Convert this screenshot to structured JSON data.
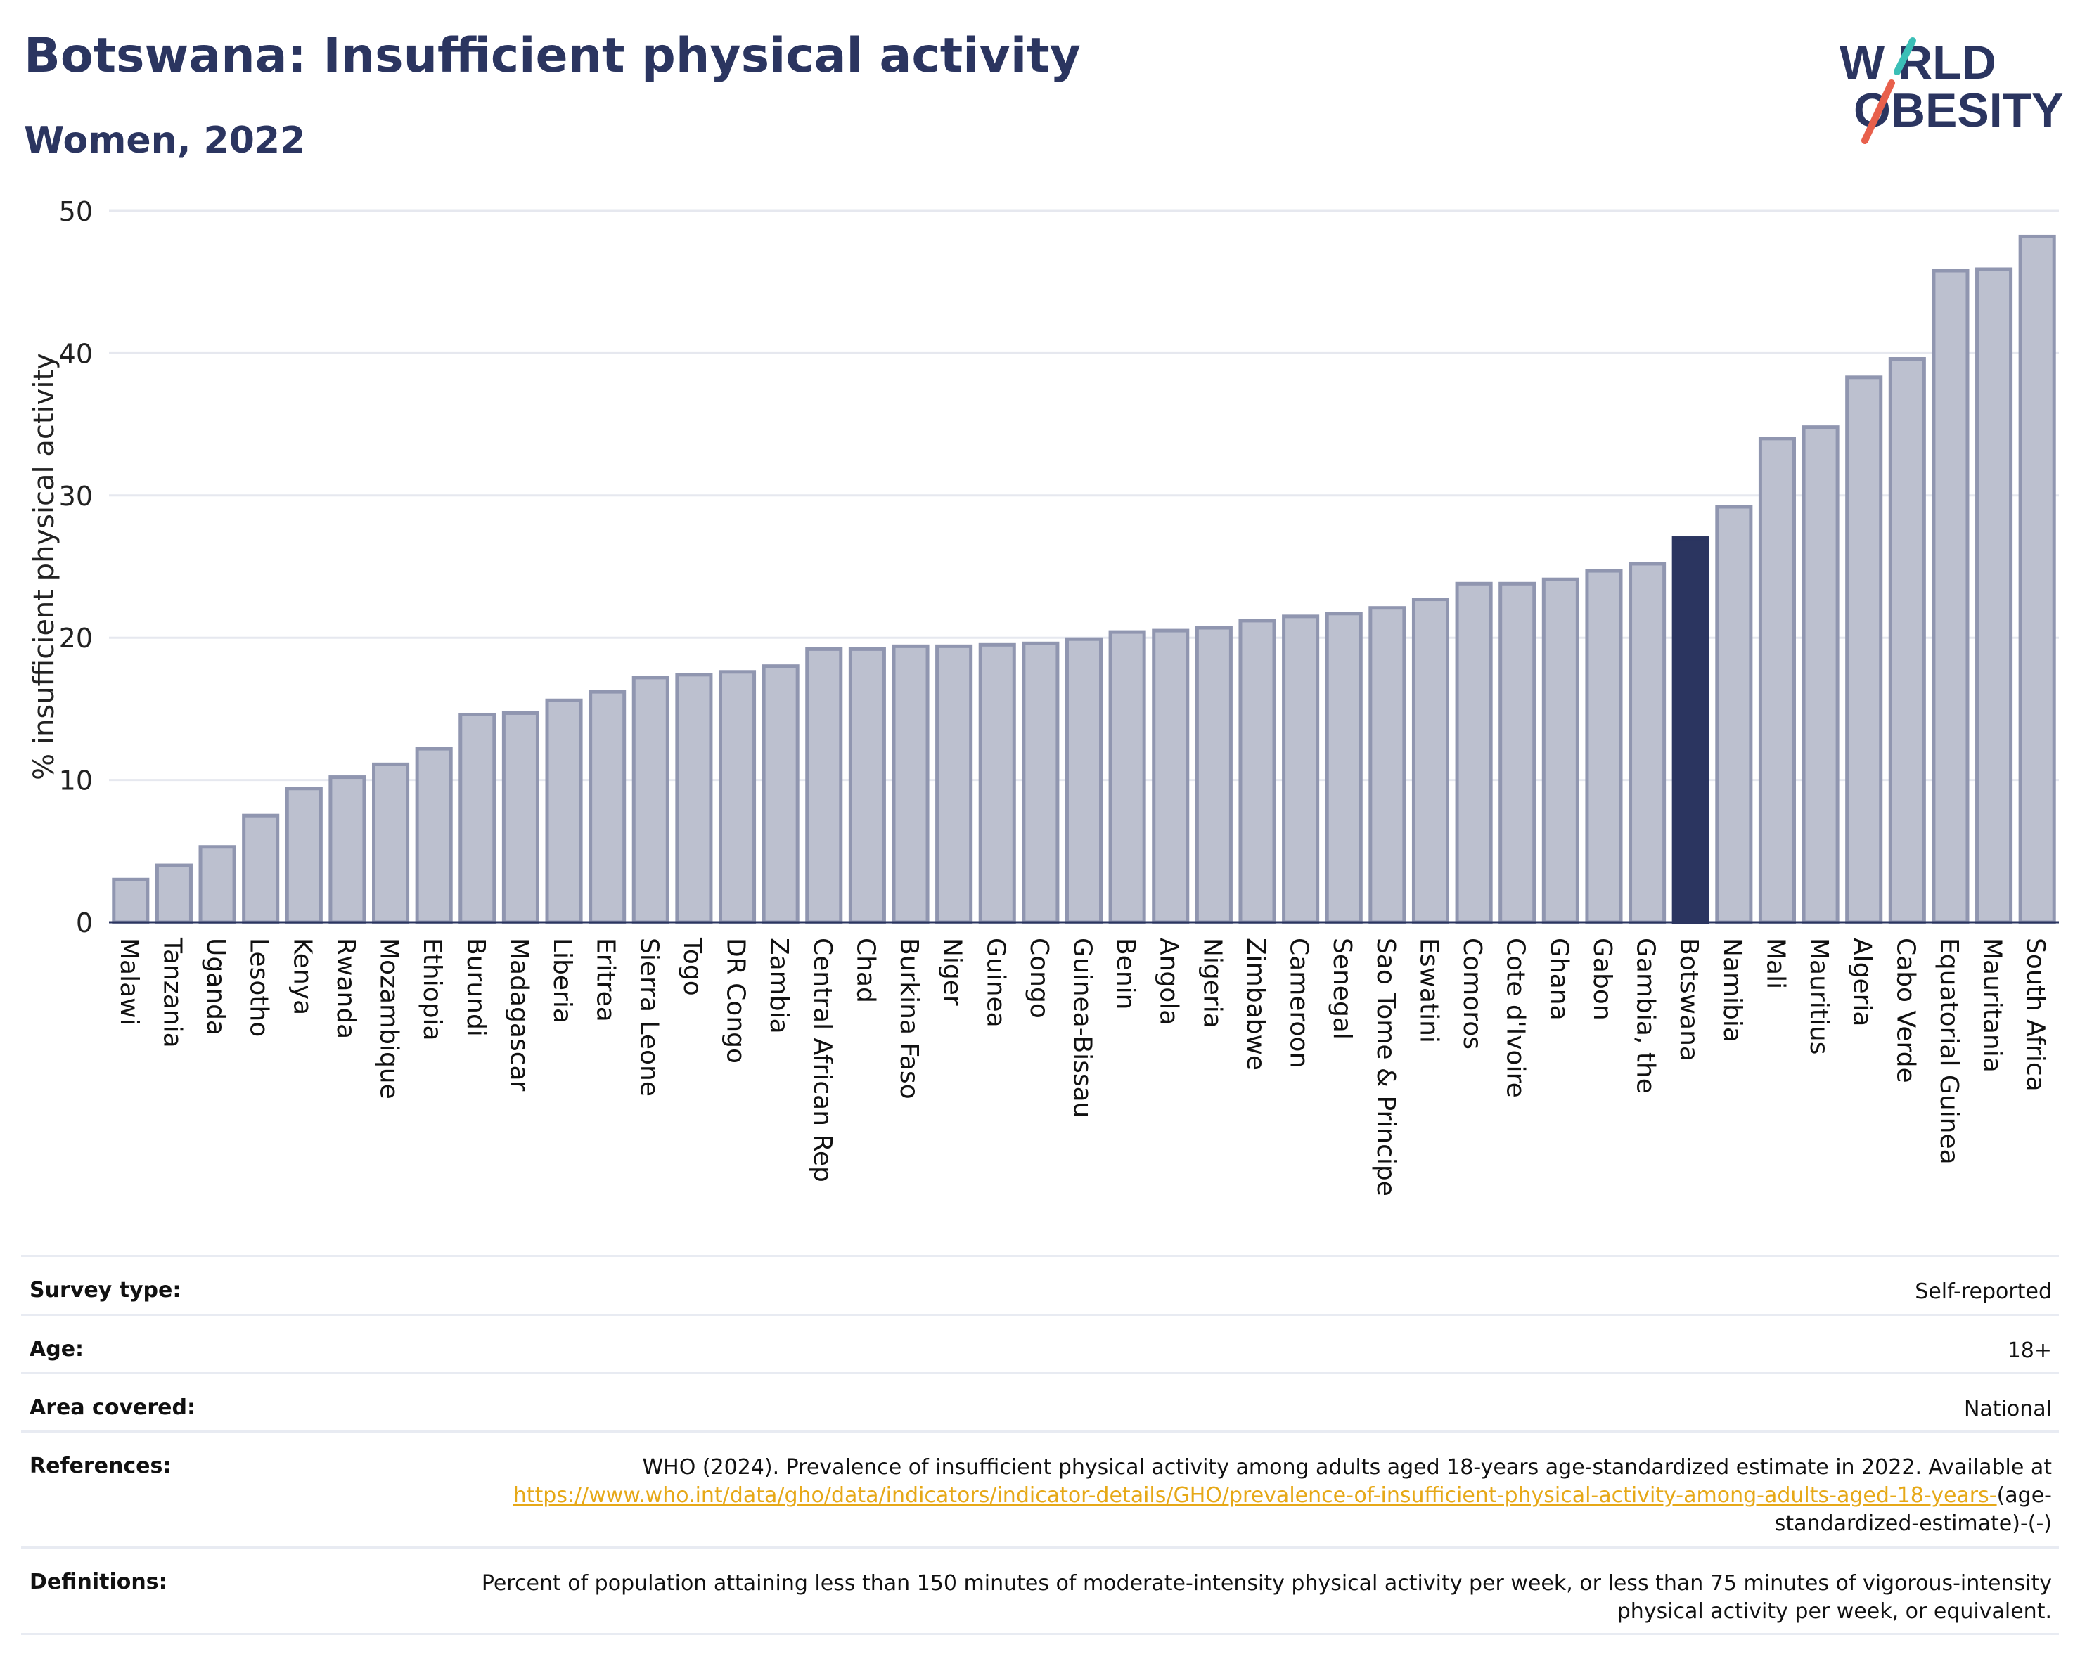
{
  "header": {
    "title": "Botswana: Insufficient physical activity",
    "subtitle": "Women, 2022"
  },
  "logo": {
    "line1": "W RLD",
    "line2": "OBESITY",
    "text": "WORLD OBESITY"
  },
  "colors": {
    "highlight": "#2b3560",
    "bar": "#bcc0cf",
    "bar_edge": "#9096b0",
    "grid": "#e6e8ef",
    "link": "#e6a817",
    "logo_slash_teal": "#3bbfb7",
    "logo_slash_red": "#e8604c"
  },
  "chart_data": {
    "type": "bar",
    "ylabel": "% insufficient physical activity",
    "ylim": [
      0,
      50
    ],
    "yticks": [
      0,
      10,
      20,
      30,
      40,
      50
    ],
    "highlight": "Botswana",
    "categories": [
      "Malawi",
      "Tanzania",
      "Uganda",
      "Lesotho",
      "Kenya",
      "Rwanda",
      "Mozambique",
      "Ethiopia",
      "Burundi",
      "Madagascar",
      "Liberia",
      "Eritrea",
      "Sierra Leone",
      "Togo",
      "DR Congo",
      "Zambia",
      "Central African Rep",
      "Chad",
      "Burkina Faso",
      "Niger",
      "Guinea",
      "Congo",
      "Guinea-Bissau",
      "Benin",
      "Angola",
      "Nigeria",
      "Zimbabwe",
      "Cameroon",
      "Senegal",
      "Sao Tome & Principe",
      "Eswatini",
      "Comoros",
      "Cote d'Ivoire",
      "Ghana",
      "Gabon",
      "Gambia, the",
      "Botswana",
      "Namibia",
      "Mali",
      "Mauritius",
      "Algeria",
      "Cabo Verde",
      "Equatorial Guinea",
      "Mauritania",
      "South Africa"
    ],
    "values": [
      3.0,
      4.0,
      5.3,
      7.5,
      9.4,
      10.2,
      11.1,
      12.2,
      14.6,
      14.7,
      15.6,
      16.2,
      17.2,
      17.4,
      17.6,
      18.0,
      19.2,
      19.2,
      19.4,
      19.4,
      19.5,
      19.6,
      19.9,
      20.4,
      20.5,
      20.7,
      21.2,
      21.5,
      21.7,
      22.1,
      22.7,
      23.8,
      23.8,
      24.1,
      24.7,
      25.2,
      27.0,
      29.2,
      34.0,
      34.8,
      38.3,
      39.6,
      45.8,
      45.9,
      48.2
    ]
  },
  "info": {
    "survey_type_label": "Survey type:",
    "survey_type_value": "Self-reported",
    "age_label": "Age:",
    "age_value": "18+",
    "area_label": "Area covered:",
    "area_value": "National",
    "references_label": "References:",
    "references_text": "WHO (2024). Prevalence of insufficient physical activity among adults aged 18-years age-standardized estimate in 2022. Available at",
    "references_link": "https://www.who.int/data/gho/data/indicators/indicator-details/GHO/prevalence-of-insufficient-physical-activity-among-adults-aged-18-years-",
    "references_suffix": "(age-standardized-estimate)-(-)",
    "definitions_label": "Definitions:",
    "definitions_value": "Percent of population attaining less than 150 minutes of moderate-intensity physical activity per week, or less than 75 minutes of vigorous-intensity physical activity per week, or equivalent."
  }
}
